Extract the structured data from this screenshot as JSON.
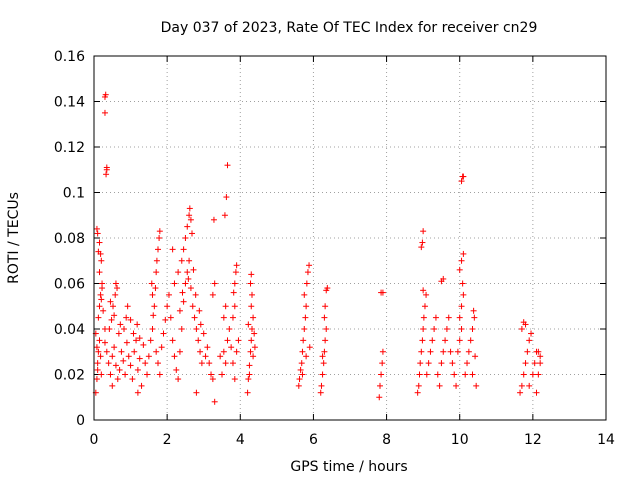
{
  "chart_data": {
    "type": "scatter",
    "title": "Day 037 of 2023, Rate Of TEC Index for receiver cn29",
    "xlabel": "GPS time / hours",
    "ylabel": "ROTI / TECUs",
    "xlim": [
      0,
      14
    ],
    "ylim": [
      0,
      0.16
    ],
    "xticks": [
      "0",
      "2",
      "4",
      "6",
      "8",
      "10",
      "12",
      "14"
    ],
    "yticks": [
      "0",
      "0.02",
      "0.04",
      "0.06",
      "0.08",
      "0.1",
      "0.12",
      "0.14",
      "0.16"
    ],
    "grid": true,
    "marker": "plus",
    "color": "#ff0000",
    "series": [
      {
        "name": "ROTI",
        "points": [
          [
            0.05,
            0.012
          ],
          [
            0.08,
            0.018
          ],
          [
            0.1,
            0.025
          ],
          [
            0.12,
            0.03
          ],
          [
            0.15,
            0.035
          ],
          [
            0.05,
            0.038
          ],
          [
            0.1,
            0.022
          ],
          [
            0.18,
            0.028
          ],
          [
            0.2,
            0.02
          ],
          [
            0.08,
            0.032
          ],
          [
            0.12,
            0.045
          ],
          [
            0.15,
            0.05
          ],
          [
            0.18,
            0.055
          ],
          [
            0.2,
            0.053
          ],
          [
            0.22,
            0.06
          ],
          [
            0.15,
            0.065
          ],
          [
            0.2,
            0.07
          ],
          [
            0.18,
            0.073
          ],
          [
            0.12,
            0.074
          ],
          [
            0.15,
            0.078
          ],
          [
            0.1,
            0.082
          ],
          [
            0.08,
            0.084
          ],
          [
            0.22,
            0.058
          ],
          [
            0.25,
            0.048
          ],
          [
            0.3,
            0.135
          ],
          [
            0.3,
            0.142
          ],
          [
            0.32,
            0.143
          ],
          [
            0.33,
            0.108
          ],
          [
            0.35,
            0.11
          ],
          [
            0.35,
            0.111
          ],
          [
            0.3,
            0.034
          ],
          [
            0.35,
            0.03
          ],
          [
            0.4,
            0.025
          ],
          [
            0.45,
            0.02
          ],
          [
            0.5,
            0.028
          ],
          [
            0.55,
            0.032
          ],
          [
            0.6,
            0.024
          ],
          [
            0.65,
            0.018
          ],
          [
            0.7,
            0.022
          ],
          [
            0.75,
            0.03
          ],
          [
            0.42,
            0.04
          ],
          [
            0.48,
            0.044
          ],
          [
            0.52,
            0.05
          ],
          [
            0.58,
            0.055
          ],
          [
            0.6,
            0.06
          ],
          [
            0.63,
            0.058
          ],
          [
            0.45,
            0.052
          ],
          [
            0.55,
            0.046
          ],
          [
            0.68,
            0.038
          ],
          [
            0.72,
            0.042
          ],
          [
            0.8,
            0.026
          ],
          [
            0.85,
            0.02
          ],
          [
            0.9,
            0.034
          ],
          [
            0.95,
            0.028
          ],
          [
            1.0,
            0.024
          ],
          [
            1.05,
            0.018
          ],
          [
            1.1,
            0.03
          ],
          [
            1.15,
            0.035
          ],
          [
            1.2,
            0.022
          ],
          [
            1.25,
            0.027
          ],
          [
            0.82,
            0.04
          ],
          [
            0.88,
            0.045
          ],
          [
            0.92,
            0.05
          ],
          [
            1.0,
            0.044
          ],
          [
            1.08,
            0.038
          ],
          [
            1.18,
            0.042
          ],
          [
            1.25,
            0.036
          ],
          [
            1.3,
            0.015
          ],
          [
            1.35,
            0.033
          ],
          [
            1.4,
            0.025
          ],
          [
            1.45,
            0.02
          ],
          [
            1.5,
            0.028
          ],
          [
            1.55,
            0.035
          ],
          [
            1.6,
            0.04
          ],
          [
            1.62,
            0.046
          ],
          [
            1.65,
            0.05
          ],
          [
            1.68,
            0.058
          ],
          [
            1.7,
            0.065
          ],
          [
            1.72,
            0.07
          ],
          [
            1.75,
            0.075
          ],
          [
            1.78,
            0.08
          ],
          [
            1.8,
            0.083
          ],
          [
            1.6,
            0.055
          ],
          [
            1.58,
            0.06
          ],
          [
            1.7,
            0.03
          ],
          [
            1.75,
            0.025
          ],
          [
            1.8,
            0.02
          ],
          [
            1.85,
            0.032
          ],
          [
            1.9,
            0.038
          ],
          [
            1.95,
            0.044
          ],
          [
            2.0,
            0.05
          ],
          [
            2.05,
            0.055
          ],
          [
            2.1,
            0.045
          ],
          [
            2.15,
            0.035
          ],
          [
            2.2,
            0.028
          ],
          [
            2.25,
            0.022
          ],
          [
            2.3,
            0.018
          ],
          [
            2.35,
            0.03
          ],
          [
            2.4,
            0.04
          ],
          [
            2.45,
            0.052
          ],
          [
            2.5,
            0.06
          ],
          [
            2.55,
            0.065
          ],
          [
            2.6,
            0.07
          ],
          [
            2.65,
            0.058
          ],
          [
            2.7,
            0.05
          ],
          [
            2.75,
            0.045
          ],
          [
            2.8,
            0.04
          ],
          [
            2.85,
            0.035
          ],
          [
            2.9,
            0.03
          ],
          [
            2.95,
            0.025
          ],
          [
            2.2,
            0.06
          ],
          [
            2.3,
            0.065
          ],
          [
            2.4,
            0.07
          ],
          [
            2.45,
            0.075
          ],
          [
            2.5,
            0.08
          ],
          [
            2.55,
            0.085
          ],
          [
            2.6,
            0.09
          ],
          [
            2.62,
            0.093
          ],
          [
            2.65,
            0.088
          ],
          [
            2.68,
            0.082
          ],
          [
            2.35,
            0.048
          ],
          [
            2.42,
            0.056
          ],
          [
            2.58,
            0.062
          ],
          [
            2.72,
            0.066
          ],
          [
            2.78,
            0.055
          ],
          [
            2.88,
            0.048
          ],
          [
            2.92,
            0.042
          ],
          [
            3.0,
            0.038
          ],
          [
            3.05,
            0.028
          ],
          [
            2.15,
            0.075
          ],
          [
            3.1,
            0.032
          ],
          [
            3.15,
            0.025
          ],
          [
            3.2,
            0.02
          ],
          [
            3.25,
            0.018
          ],
          [
            3.3,
            0.008
          ],
          [
            3.25,
            0.055
          ],
          [
            3.3,
            0.06
          ],
          [
            3.28,
            0.088
          ],
          [
            3.55,
            0.03
          ],
          [
            3.6,
            0.025
          ],
          [
            3.65,
            0.035
          ],
          [
            3.55,
            0.045
          ],
          [
            3.6,
            0.05
          ],
          [
            3.58,
            0.09
          ],
          [
            3.62,
            0.098
          ],
          [
            3.65,
            0.112
          ],
          [
            3.5,
            0.02
          ],
          [
            3.45,
            0.028
          ],
          [
            3.7,
            0.04
          ],
          [
            3.75,
            0.032
          ],
          [
            3.8,
            0.025
          ],
          [
            3.85,
            0.018
          ],
          [
            3.9,
            0.03
          ],
          [
            3.95,
            0.035
          ],
          [
            3.8,
            0.045
          ],
          [
            3.85,
            0.05
          ],
          [
            3.82,
            0.056
          ],
          [
            3.85,
            0.06
          ],
          [
            3.88,
            0.065
          ],
          [
            3.9,
            0.068
          ],
          [
            4.2,
            0.012
          ],
          [
            4.22,
            0.018
          ],
          [
            4.25,
            0.024
          ],
          [
            4.28,
            0.03
          ],
          [
            4.3,
            0.035
          ],
          [
            4.32,
            0.04
          ],
          [
            4.35,
            0.045
          ],
          [
            4.3,
            0.05
          ],
          [
            4.32,
            0.055
          ],
          [
            4.28,
            0.06
          ],
          [
            4.3,
            0.064
          ],
          [
            4.25,
            0.02
          ],
          [
            4.35,
            0.028
          ],
          [
            4.4,
            0.032
          ],
          [
            4.38,
            0.038
          ],
          [
            4.22,
            0.042
          ],
          [
            5.6,
            0.015
          ],
          [
            5.62,
            0.018
          ],
          [
            5.65,
            0.022
          ],
          [
            5.68,
            0.025
          ],
          [
            5.7,
            0.03
          ],
          [
            5.72,
            0.035
          ],
          [
            5.75,
            0.04
          ],
          [
            5.78,
            0.045
          ],
          [
            5.8,
            0.05
          ],
          [
            5.75,
            0.055
          ],
          [
            5.82,
            0.06
          ],
          [
            5.85,
            0.065
          ],
          [
            5.88,
            0.068
          ],
          [
            5.7,
            0.02
          ],
          [
            5.8,
            0.028
          ],
          [
            5.9,
            0.032
          ],
          [
            6.2,
            0.012
          ],
          [
            6.22,
            0.015
          ],
          [
            6.25,
            0.02
          ],
          [
            6.28,
            0.025
          ],
          [
            6.3,
            0.03
          ],
          [
            6.32,
            0.035
          ],
          [
            6.35,
            0.04
          ],
          [
            6.3,
            0.045
          ],
          [
            6.32,
            0.05
          ],
          [
            6.35,
            0.057
          ],
          [
            6.38,
            0.058
          ],
          [
            6.25,
            0.028
          ],
          [
            7.8,
            0.01
          ],
          [
            7.82,
            0.015
          ],
          [
            7.85,
            0.02
          ],
          [
            7.88,
            0.025
          ],
          [
            7.9,
            0.03
          ],
          [
            7.85,
            0.056
          ],
          [
            7.9,
            0.056
          ],
          [
            8.85,
            0.012
          ],
          [
            8.88,
            0.015
          ],
          [
            8.9,
            0.02
          ],
          [
            8.92,
            0.025
          ],
          [
            8.95,
            0.03
          ],
          [
            8.98,
            0.035
          ],
          [
            9.0,
            0.04
          ],
          [
            9.02,
            0.045
          ],
          [
            9.05,
            0.05
          ],
          [
            9.08,
            0.055
          ],
          [
            9.0,
            0.057
          ],
          [
            8.95,
            0.076
          ],
          [
            8.98,
            0.078
          ],
          [
            9.0,
            0.083
          ],
          [
            9.1,
            0.02
          ],
          [
            9.15,
            0.025
          ],
          [
            9.2,
            0.03
          ],
          [
            9.25,
            0.035
          ],
          [
            9.3,
            0.04
          ],
          [
            9.35,
            0.045
          ],
          [
            9.4,
            0.02
          ],
          [
            9.45,
            0.015
          ],
          [
            9.5,
            0.025
          ],
          [
            9.55,
            0.03
          ],
          [
            9.5,
            0.061
          ],
          [
            9.55,
            0.062
          ],
          [
            9.6,
            0.035
          ],
          [
            9.65,
            0.04
          ],
          [
            9.7,
            0.045
          ],
          [
            9.75,
            0.03
          ],
          [
            9.8,
            0.025
          ],
          [
            9.85,
            0.02
          ],
          [
            9.9,
            0.015
          ],
          [
            9.95,
            0.03
          ],
          [
            10.0,
            0.035
          ],
          [
            10.05,
            0.04
          ],
          [
            10.0,
            0.045
          ],
          [
            10.05,
            0.05
          ],
          [
            10.1,
            0.055
          ],
          [
            10.08,
            0.06
          ],
          [
            10.0,
            0.066
          ],
          [
            10.05,
            0.07
          ],
          [
            10.1,
            0.073
          ],
          [
            10.05,
            0.105
          ],
          [
            10.08,
            0.107
          ],
          [
            10.1,
            0.107
          ],
          [
            10.15,
            0.02
          ],
          [
            10.2,
            0.025
          ],
          [
            10.25,
            0.03
          ],
          [
            10.3,
            0.035
          ],
          [
            10.35,
            0.04
          ],
          [
            10.4,
            0.045
          ],
          [
            10.35,
            0.02
          ],
          [
            10.45,
            0.015
          ],
          [
            10.42,
            0.028
          ],
          [
            10.38,
            0.048
          ],
          [
            11.65,
            0.012
          ],
          [
            11.7,
            0.015
          ],
          [
            11.75,
            0.02
          ],
          [
            11.8,
            0.025
          ],
          [
            11.85,
            0.03
          ],
          [
            11.9,
            0.035
          ],
          [
            11.95,
            0.038
          ],
          [
            11.7,
            0.04
          ],
          [
            11.75,
            0.043
          ],
          [
            11.8,
            0.042
          ],
          [
            12.0,
            0.02
          ],
          [
            12.05,
            0.025
          ],
          [
            12.1,
            0.03
          ],
          [
            12.15,
            0.02
          ],
          [
            12.2,
            0.025
          ],
          [
            11.9,
            0.015
          ],
          [
            12.1,
            0.012
          ],
          [
            12.15,
            0.03
          ],
          [
            12.2,
            0.028
          ],
          [
            0.3,
            0.04
          ],
          [
            0.5,
            0.015
          ],
          [
            1.2,
            0.012
          ],
          [
            2.8,
            0.012
          ]
        ]
      }
    ]
  }
}
